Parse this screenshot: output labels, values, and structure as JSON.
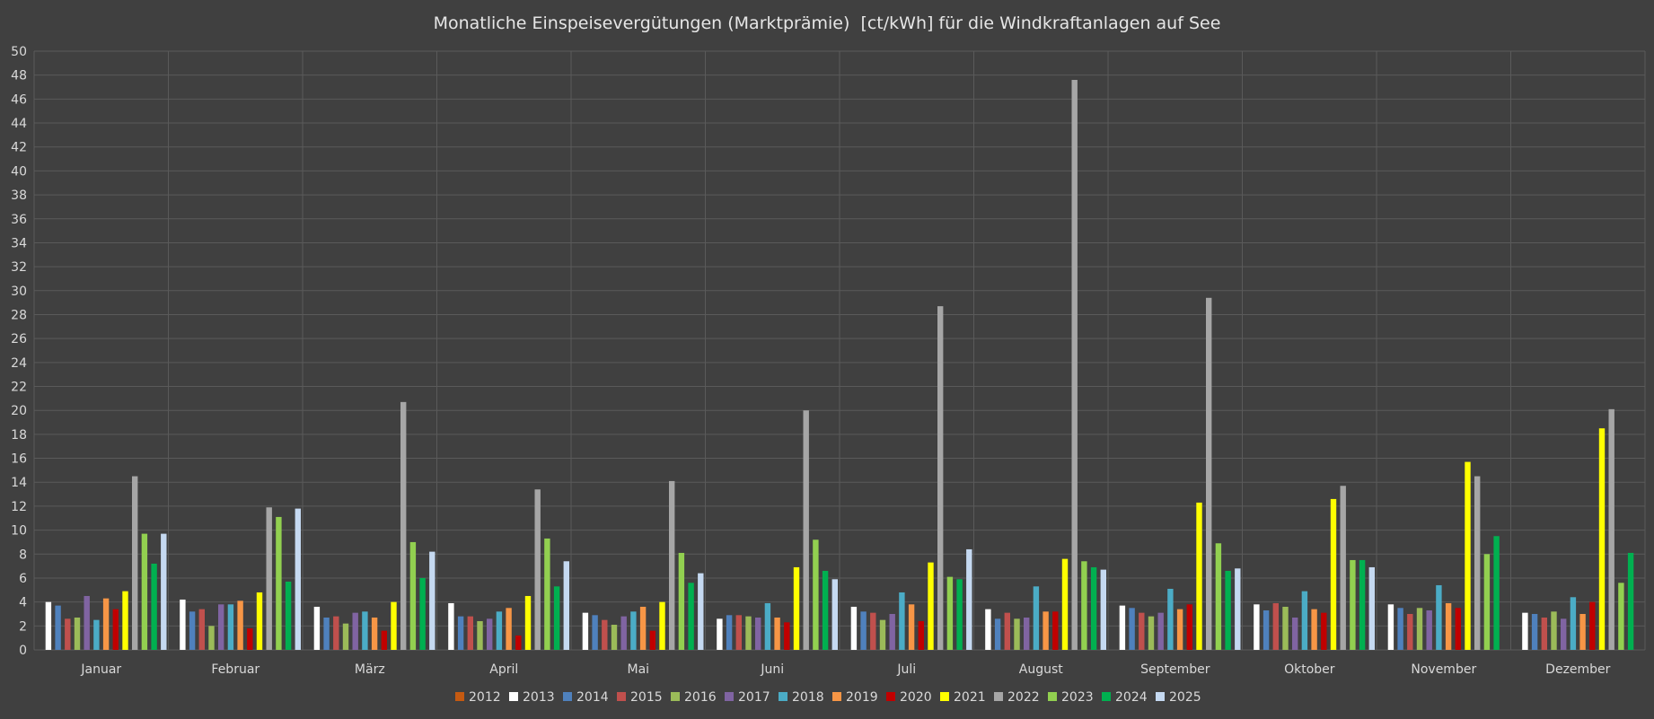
{
  "chart_data": {
    "type": "bar",
    "title": "Monatliche Einspeisevergütungen (Marktprämie)  [ct/kWh] für die Windkraftanlagen auf See",
    "xlabel": "",
    "ylabel": "",
    "ylim": [
      0,
      50
    ],
    "yticks": [
      0,
      2,
      4,
      6,
      8,
      10,
      12,
      14,
      16,
      18,
      20,
      22,
      24,
      26,
      28,
      30,
      32,
      34,
      36,
      38,
      40,
      42,
      44,
      46,
      48,
      50
    ],
    "grid": true,
    "legend_position": "bottom",
    "categories": [
      "Januar",
      "Februar",
      "März",
      "April",
      "Mai",
      "Juni",
      "Juli",
      "August",
      "September",
      "Oktober",
      "November",
      "Dezember"
    ],
    "series": [
      {
        "name": "2012",
        "color": "#c55a11",
        "values": [
          0,
          0,
          0,
          0,
          0,
          0,
          0,
          0,
          0,
          0,
          0,
          0
        ]
      },
      {
        "name": "2013",
        "color": "#ffffff",
        "values": [
          4.0,
          4.2,
          3.6,
          3.9,
          3.1,
          2.6,
          3.6,
          3.4,
          3.7,
          3.8,
          3.8,
          3.1
        ]
      },
      {
        "name": "2014",
        "color": "#4f81bd",
        "values": [
          3.7,
          3.2,
          2.7,
          2.8,
          2.9,
          2.9,
          3.2,
          2.6,
          3.5,
          3.3,
          3.5,
          3.0
        ]
      },
      {
        "name": "2015",
        "color": "#c0504d",
        "values": [
          2.6,
          3.4,
          2.8,
          2.8,
          2.5,
          2.9,
          3.1,
          3.1,
          3.1,
          3.9,
          3.0,
          2.7
        ]
      },
      {
        "name": "2016",
        "color": "#9bbb59",
        "values": [
          2.7,
          2.0,
          2.2,
          2.4,
          2.1,
          2.8,
          2.5,
          2.6,
          2.8,
          3.6,
          3.5,
          3.2
        ]
      },
      {
        "name": "2017",
        "color": "#8064a2",
        "values": [
          4.5,
          3.8,
          3.1,
          2.6,
          2.8,
          2.7,
          3.0,
          2.7,
          3.1,
          2.7,
          3.3,
          2.6
        ]
      },
      {
        "name": "2018",
        "color": "#4bacc6",
        "values": [
          2.5,
          3.8,
          3.2,
          3.2,
          3.2,
          3.9,
          4.8,
          5.3,
          5.1,
          4.9,
          5.4,
          4.4
        ]
      },
      {
        "name": "2019",
        "color": "#f79646",
        "values": [
          4.3,
          4.1,
          2.7,
          3.5,
          3.6,
          2.7,
          3.8,
          3.2,
          3.4,
          3.4,
          3.9,
          3.0
        ]
      },
      {
        "name": "2020",
        "color": "#c00000",
        "values": [
          3.4,
          1.8,
          1.6,
          1.2,
          1.6,
          2.3,
          2.4,
          3.2,
          3.8,
          3.1,
          3.5,
          4.0
        ]
      },
      {
        "name": "2021",
        "color": "#ffff00",
        "values": [
          4.9,
          4.8,
          4.0,
          4.5,
          4.0,
          6.9,
          7.3,
          7.6,
          12.3,
          12.6,
          15.7,
          18.5
        ]
      },
      {
        "name": "2022",
        "color": "#a6a6a6",
        "values": [
          14.5,
          11.9,
          20.7,
          13.4,
          14.1,
          20.0,
          28.7,
          47.6,
          29.4,
          13.7,
          14.5,
          20.1
        ]
      },
      {
        "name": "2023",
        "color": "#92d050",
        "values": [
          9.7,
          11.1,
          9.0,
          9.3,
          8.1,
          9.2,
          6.1,
          7.4,
          8.9,
          7.5,
          8.0,
          5.6
        ]
      },
      {
        "name": "2024",
        "color": "#00b050",
        "values": [
          7.2,
          5.7,
          6.0,
          5.3,
          5.6,
          6.6,
          5.9,
          6.9,
          6.6,
          7.5,
          9.5,
          8.1
        ]
      },
      {
        "name": "2025",
        "color": "#c5d9f1",
        "values": [
          9.7,
          11.8,
          8.2,
          7.4,
          6.4,
          5.9,
          8.4,
          6.7,
          6.8,
          6.9,
          null,
          null
        ]
      }
    ]
  }
}
